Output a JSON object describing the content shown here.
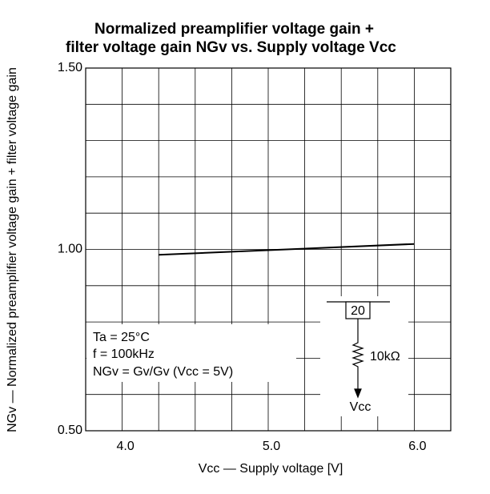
{
  "chart_data": {
    "type": "line",
    "title": [
      "Normalized preamplifier voltage gain +",
      "filter voltage gain NGv vs. Supply voltage Vcc"
    ],
    "x_label": "Vcc — Supply voltage [V]",
    "y_label": "NGv — Normalized preamplifier voltage gain + filter voltage gain",
    "x": [
      4.25,
      6.0
    ],
    "series": [
      {
        "color": "#000000",
        "values": [
          0.985,
          1.015
        ]
      }
    ],
    "xlim": [
      3.75,
      6.25
    ],
    "xticks": [
      {
        "value": 4,
        "label": "4.0"
      },
      {
        "value": 5,
        "label": "5.0"
      },
      {
        "value": 6,
        "label": "6.0"
      }
    ],
    "x_minor_ticks": [
      4.25,
      4.5,
      4.75,
      5.25,
      5.5,
      5.75
    ],
    "ylim": [
      0.5,
      1.5
    ],
    "yticks": [
      {
        "value": 0.5,
        "label": "0.50"
      },
      {
        "value": 1,
        "label": "1.00"
      },
      {
        "value": 1.5,
        "label": "1.50"
      }
    ],
    "y_minor_ticks": [
      0.6,
      0.7,
      0.8,
      0.9,
      1.1,
      1.2,
      1.3,
      1.4,
      0.55,
      0.65,
      0.75,
      0.85,
      0.95,
      1.05,
      1.15,
      1.25,
      1.35,
      1.45
    ],
    "grid": true,
    "annotations": [
      "Ta = 25°C",
      "f = 100kHz",
      "NGv = Gv/Gv (Vcc = 5V)"
    ],
    "circuit": {
      "pin": "20",
      "resistor": "10kΩ",
      "supply": "Vcc"
    }
  }
}
